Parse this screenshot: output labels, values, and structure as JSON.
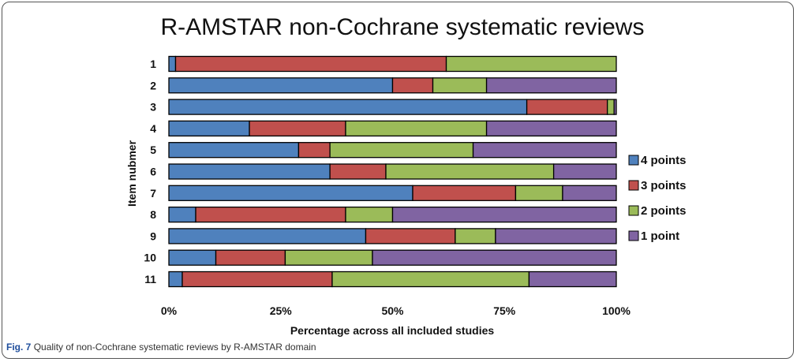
{
  "chart_data": {
    "type": "bar",
    "orientation": "horizontal-stacked-percent",
    "title": "R-AMSTAR non-Cochrane systematic reviews",
    "xlabel": "Percentage across all included studies",
    "ylabel": "Item nubmer",
    "categories": [
      "1",
      "2",
      "3",
      "4",
      "5",
      "6",
      "7",
      "8",
      "9",
      "10",
      "11"
    ],
    "xlim": [
      0,
      100
    ],
    "xticks": [
      "0%",
      "25%",
      "50%",
      "75%",
      "100%"
    ],
    "legend_position": "right",
    "series": [
      {
        "name": "4 points",
        "color": "#4f81bd",
        "values": [
          1.5,
          50,
          80,
          18,
          29,
          36,
          54.5,
          6,
          44,
          10.5,
          3
        ]
      },
      {
        "name": "3 points",
        "color": "#c0504d",
        "values": [
          60.5,
          9,
          18,
          21.5,
          7,
          12.5,
          23,
          33.5,
          20,
          15.5,
          33.5
        ]
      },
      {
        "name": "2 points",
        "color": "#9bbb59",
        "values": [
          38,
          12,
          1.5,
          31.5,
          32,
          37.5,
          10.5,
          10.5,
          9,
          19.5,
          44
        ]
      },
      {
        "name": "1 point",
        "color": "#8064a2",
        "values": [
          0,
          29,
          0.5,
          29,
          32,
          14,
          12,
          50,
          27,
          54.5,
          19.5
        ]
      }
    ]
  },
  "caption": {
    "fig_label": "Fig. 7",
    "text": "Quality of non-Cochrane systematic reviews by R-AMSTAR domain"
  }
}
